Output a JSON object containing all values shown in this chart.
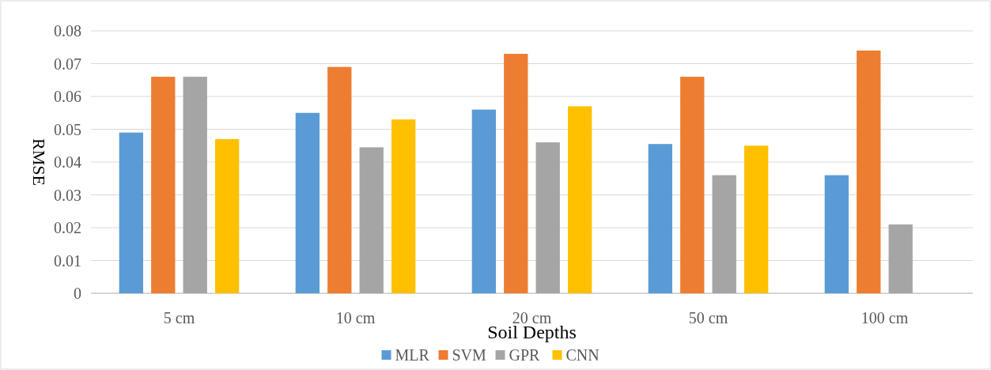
{
  "chart_data": {
    "type": "bar",
    "xlabel": "Soil Depths",
    "ylabel": "RMSE",
    "categories": [
      "5 cm",
      "10 cm",
      "20 cm",
      "50 cm",
      "100 cm"
    ],
    "series": [
      {
        "name": "MLR",
        "color": "#5b9bd5",
        "values": [
          0.049,
          0.055,
          0.056,
          0.0455,
          0.036
        ]
      },
      {
        "name": "SVM",
        "color": "#ed7d31",
        "values": [
          0.066,
          0.069,
          0.073,
          0.066,
          0.074
        ]
      },
      {
        "name": "GPR",
        "color": "#a5a5a5",
        "values": [
          0.066,
          0.0445,
          0.046,
          0.036,
          0.021
        ]
      },
      {
        "name": "CNN",
        "color": "#ffc000",
        "values": [
          0.047,
          0.053,
          0.057,
          0.045,
          null
        ]
      }
    ],
    "ylim": [
      0,
      0.08
    ],
    "yticks": [
      {
        "value": 0,
        "label": "0"
      },
      0.01,
      0.02,
      0.03,
      0.04,
      0.05,
      0.06,
      0.07,
      0.08
    ],
    "grid": "y",
    "legend": "bottom"
  }
}
